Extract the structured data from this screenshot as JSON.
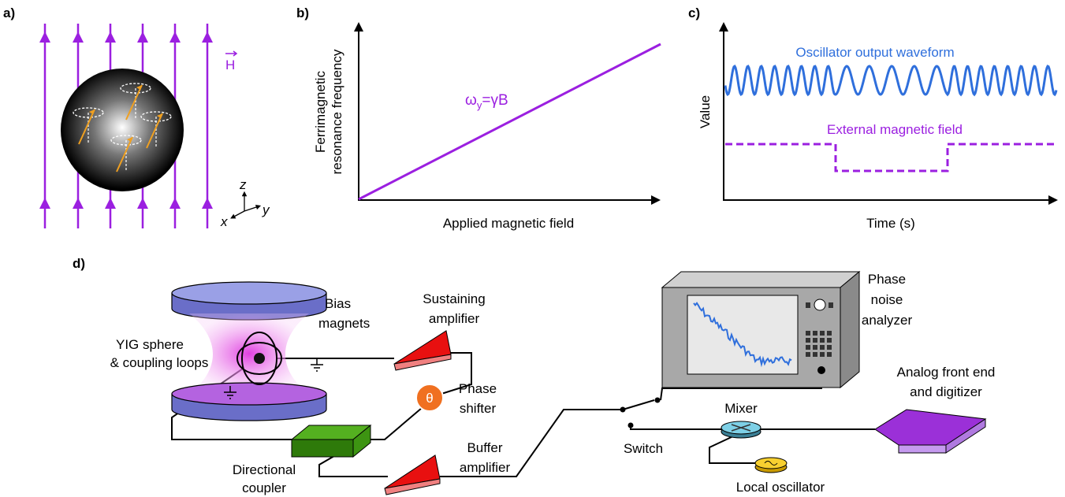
{
  "panel_labels": {
    "a": "a)",
    "b": "b)",
    "c": "c)",
    "d": "d)"
  },
  "panel_a": {
    "field_label": "H",
    "axes": {
      "z": "z",
      "y": "y",
      "x": "x"
    }
  },
  "panel_b": {
    "y_label": [
      "Ferrimagnetic",
      "resonance frequency"
    ],
    "x_label": "Applied magnetic field",
    "equation": {
      "symbol": "ω",
      "subscript": "y",
      "rest": "=γB"
    }
  },
  "panel_c": {
    "y_label": "Value",
    "x_label": "Time (s)",
    "waveform_label": "Oscillator output waveform",
    "field_label": "External magnetic field"
  },
  "panel_d": {
    "bias_magnets": [
      "Bias",
      "magnets"
    ],
    "yig_sphere": [
      "YIG sphere",
      "& coupling loops"
    ],
    "sustaining_amplifier": [
      "Sustaining",
      "amplifier"
    ],
    "phase_shifter_symbol": "θ",
    "phase_shifter": [
      "Phase",
      "shifter"
    ],
    "directional_coupler": [
      "Directional",
      "coupler"
    ],
    "buffer_amplifier": [
      "Buffer",
      "amplifier"
    ],
    "switch": "Switch",
    "mixer": "Mixer",
    "local_oscillator": "Local oscillator",
    "phase_noise_analyzer": [
      "Phase",
      "noise",
      "analyzer"
    ],
    "digitizer": [
      "Analog front end",
      "and digitizer"
    ]
  }
}
